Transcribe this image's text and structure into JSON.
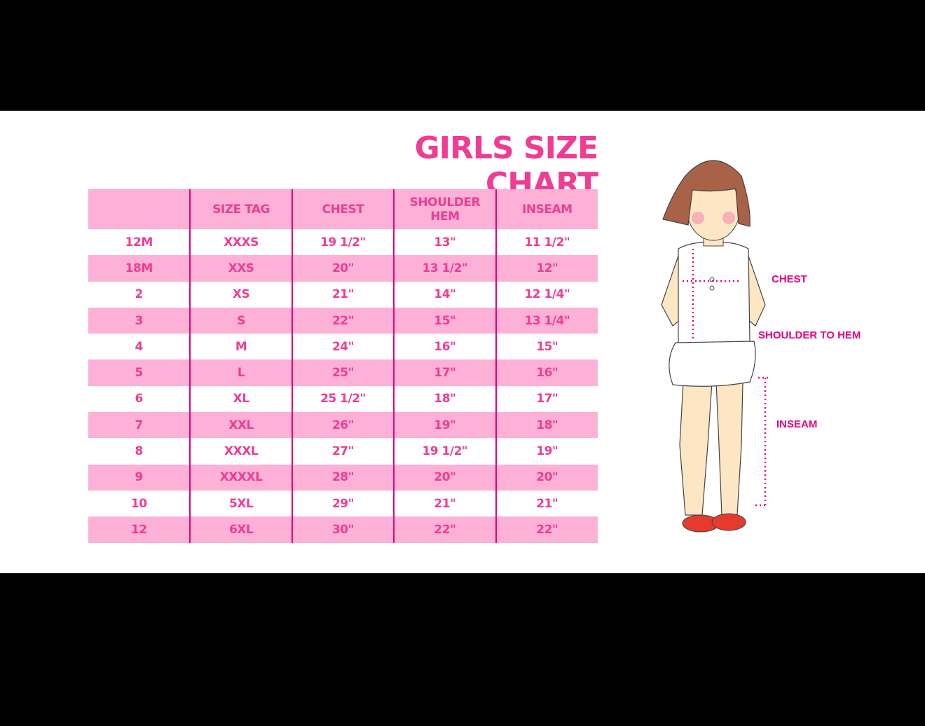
{
  "title": "GIRLS SIZE CHART",
  "table": {
    "headers": [
      "",
      "SIZE TAG",
      "CHEST",
      "SHOULDER HEM",
      "INSEAM"
    ],
    "rows": [
      [
        "12M",
        "XXXS",
        "19 1/2\"",
        "13\"",
        "11 1/2\""
      ],
      [
        "18M",
        "XXS",
        "20\"",
        "13 1/2\"",
        "12\""
      ],
      [
        "2",
        "XS",
        "21\"",
        "14\"",
        "12 1/4\""
      ],
      [
        "3",
        "S",
        "22\"",
        "15\"",
        "13 1/4\""
      ],
      [
        "4",
        "M",
        "24\"",
        "16\"",
        "15\""
      ],
      [
        "5",
        "L",
        "25\"",
        "17\"",
        "16\""
      ],
      [
        "6",
        "XL",
        "25 1/2\"",
        "18\"",
        "17\""
      ],
      [
        "7",
        "XXL",
        "26\"",
        "19\"",
        "18\""
      ],
      [
        "8",
        "XXXL",
        "27\"",
        "19 1/2\"",
        "19\""
      ],
      [
        "9",
        "XXXXL",
        "28\"",
        "20\"",
        "20\""
      ],
      [
        "10",
        "5XL",
        "29\"",
        "21\"",
        "21\""
      ],
      [
        "12",
        "6XL",
        "30\"",
        "22\"",
        "22\""
      ]
    ]
  },
  "figure": {
    "labels": {
      "chest": "CHEST",
      "shoulder_to_hem": "SHOULDER TO HEM",
      "inseam": "INSEAM"
    }
  },
  "colors": {
    "accent": "#ee3d93",
    "row_pink": "#fdb1d6",
    "divider": "#e4007c"
  }
}
